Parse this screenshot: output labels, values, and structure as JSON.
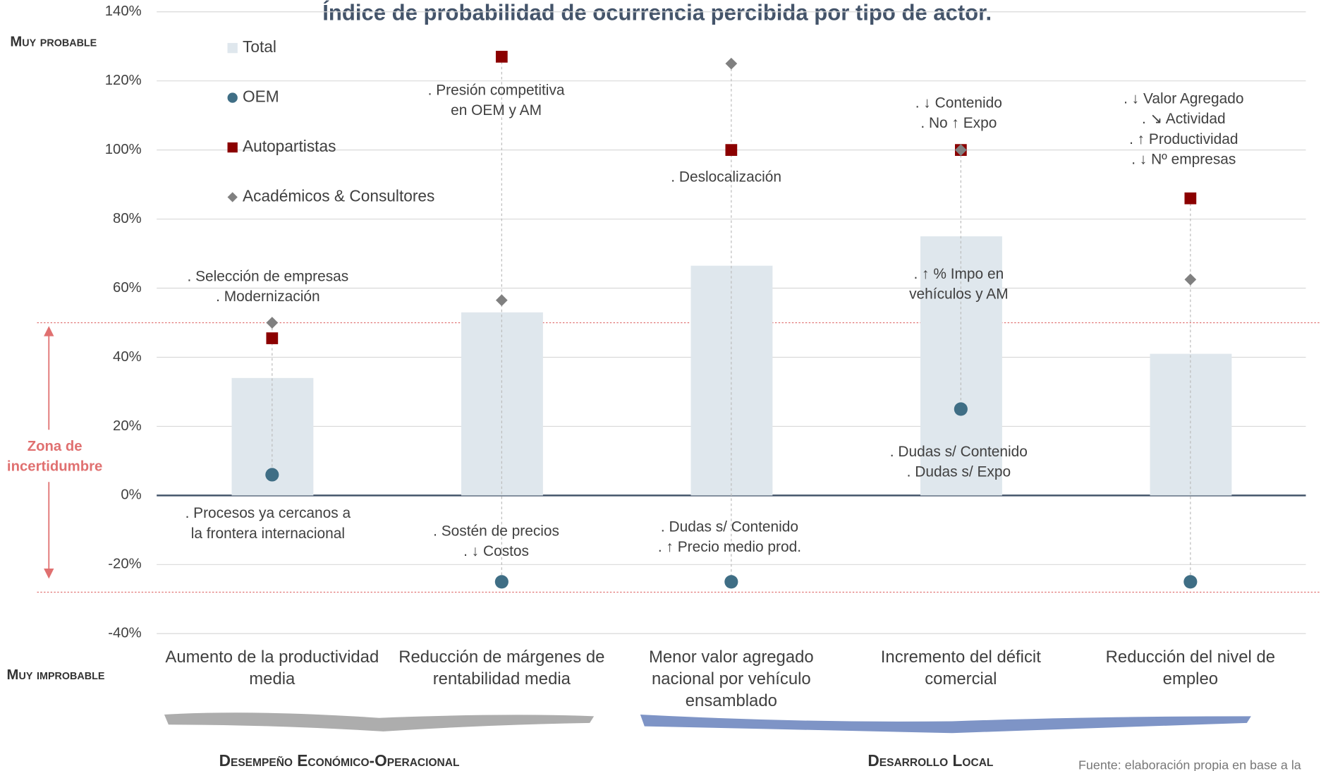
{
  "chart_data": {
    "type": "bar",
    "title": "Índice de probabilidad de ocurrencia percibida por tipo de actor.",
    "categories": [
      "Aumento de la productividad media",
      "Reducción de márgenes de rentabilidad media",
      "Menor valor agregado nacional por vehículo ensamblado",
      "Incremento del déficit comercial",
      "Reducción del nivel de empleo"
    ],
    "series": [
      {
        "name": "Total",
        "type": "bar",
        "color": "#dfe7ed",
        "values": [
          34,
          53,
          66.5,
          75,
          41
        ]
      },
      {
        "name": "OEM",
        "type": "circle",
        "color": "#3f6e85",
        "values": [
          6,
          -25,
          -25,
          25,
          -25
        ]
      },
      {
        "name": "Autopartistas",
        "type": "square",
        "color": "#8b0000",
        "values": [
          45.5,
          127,
          100,
          100,
          86
        ]
      },
      {
        "name": "Académicos & Consultores",
        "type": "diamond",
        "color": "#808080",
        "values": [
          50,
          56.5,
          125,
          100,
          62.5
        ]
      }
    ],
    "ylim": [
      -40,
      140
    ],
    "yticks": [
      {
        "value": -40,
        "label": "-40%"
      },
      {
        "value": -20,
        "label": "-20%"
      },
      {
        "value": 0,
        "label": "0%"
      },
      {
        "value": 20,
        "label": "20%"
      },
      {
        "value": 40,
        "label": "40%"
      },
      {
        "value": 60,
        "label": "60%"
      },
      {
        "value": 80,
        "label": "80%"
      },
      {
        "value": 100,
        "label": "100%"
      },
      {
        "value": 120,
        "label": "120%"
      },
      {
        "value": 140,
        "label": "140%"
      }
    ],
    "grid": true,
    "y_top_label": "Muy probable",
    "y_bottom_label": "Muy improbable",
    "uncertainty_zone": {
      "label": "Zona de incertidumbre",
      "range": [
        -28,
        50
      ]
    },
    "annotations": [
      {
        "lines": [
          ". Selección de empresas",
          ". Modernización"
        ]
      },
      {
        "lines": [
          ". Procesos ya cercanos a",
          "la frontera internacional"
        ]
      },
      {
        "lines": [
          ". Presión competitiva",
          "en OEM y AM"
        ]
      },
      {
        "lines": [
          ". Sostén de precios",
          ". ↓ Costos"
        ]
      },
      {
        "lines": [
          ". Deslocalización"
        ]
      },
      {
        "lines": [
          ". Dudas s/ Contenido",
          ". ↑ Precio medio prod."
        ]
      },
      {
        "lines": [
          ". ↓ Contenido",
          ". No ↑ Expo"
        ]
      },
      {
        "lines": [
          ". ↑ % Impo en",
          "vehículos y AM"
        ]
      },
      {
        "lines": [
          ". Dudas s/ Contenido",
          ". Dudas s/ Expo"
        ]
      },
      {
        "lines": [
          ". ↓ Valor Agregado",
          ". ↘ Actividad",
          ". ↑ Productividad",
          ". ↓ Nº empresas"
        ]
      }
    ],
    "groups": [
      "Desempeño Económico-Operacional",
      "Desarrollo Local"
    ],
    "source": "Fuente: elaboración propia en base a la"
  }
}
